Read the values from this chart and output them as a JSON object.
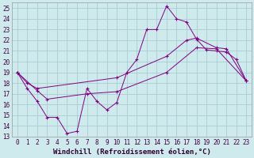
{
  "xlabel": "Windchill (Refroidissement éolien,°C)",
  "background_color": "#ceeaed",
  "grid_color": "#aacdd2",
  "line_color": "#800080",
  "xlim": [
    -0.5,
    23.5
  ],
  "ylim": [
    13,
    25.5
  ],
  "xticks": [
    0,
    1,
    2,
    3,
    4,
    5,
    6,
    7,
    8,
    9,
    10,
    11,
    12,
    13,
    14,
    15,
    16,
    17,
    18,
    19,
    20,
    21,
    22,
    23
  ],
  "yticks": [
    13,
    14,
    15,
    16,
    17,
    18,
    19,
    20,
    21,
    22,
    23,
    24,
    25
  ],
  "line1_x": [
    0,
    1,
    2,
    3,
    4,
    5,
    6,
    7,
    8,
    9,
    10,
    11,
    12,
    13,
    14,
    15,
    16,
    17,
    18,
    19,
    20,
    21,
    22,
    23
  ],
  "line1_y": [
    19.0,
    17.5,
    16.3,
    14.8,
    14.8,
    13.3,
    13.5,
    17.5,
    16.3,
    15.5,
    16.2,
    19.0,
    20.2,
    23.0,
    23.0,
    25.2,
    24.0,
    23.7,
    22.1,
    21.1,
    21.0,
    20.9,
    20.2,
    18.2
  ],
  "line2_x": [
    0,
    1,
    2,
    10,
    15,
    17,
    18,
    20,
    21,
    23
  ],
  "line2_y": [
    19.0,
    18.0,
    17.5,
    18.5,
    20.5,
    22.0,
    22.2,
    21.3,
    21.2,
    18.2
  ],
  "line3_x": [
    0,
    2,
    3,
    7,
    10,
    15,
    18,
    20,
    23
  ],
  "line3_y": [
    19.0,
    17.3,
    16.5,
    17.0,
    17.2,
    19.0,
    21.3,
    21.2,
    18.2
  ],
  "font_name": "monospace",
  "tick_fontsize": 5.5,
  "label_fontsize": 6.5
}
